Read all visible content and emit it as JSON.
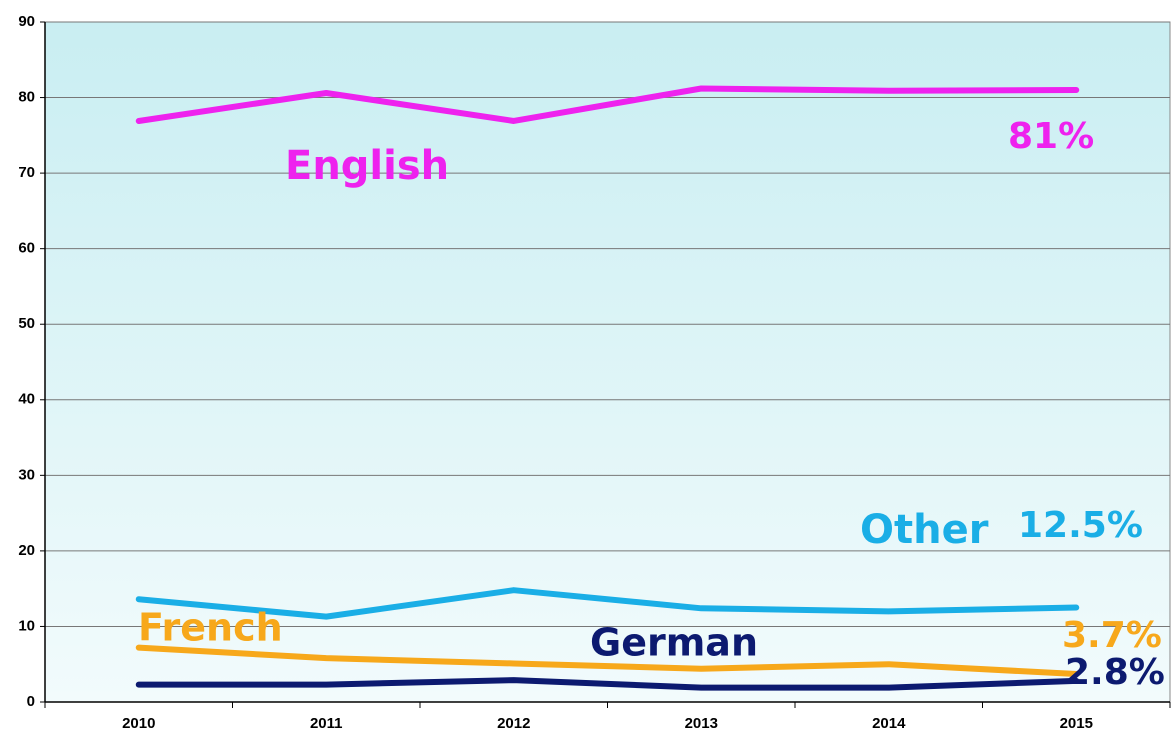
{
  "chart_data": {
    "type": "line",
    "categories": [
      "2010",
      "2011",
      "2012",
      "2013",
      "2014",
      "2015"
    ],
    "series": [
      {
        "name": "English",
        "color": "#ee22ee",
        "values": [
          76.9,
          80.6,
          76.9,
          81.2,
          80.9,
          81
        ],
        "value_labels": [
          null,
          null,
          null,
          null,
          null,
          "81%"
        ]
      },
      {
        "name": "Other",
        "color": "#1aaee6",
        "values": [
          13.6,
          11.3,
          14.8,
          12.4,
          12.0,
          12.5
        ],
        "value_labels": [
          null,
          null,
          null,
          null,
          null,
          "12.5%"
        ]
      },
      {
        "name": "French",
        "color": "#f7a81b",
        "values": [
          7.2,
          5.8,
          5.1,
          4.4,
          5.0,
          3.7
        ],
        "value_labels": [
          null,
          null,
          null,
          null,
          null,
          "3.7%"
        ]
      },
      {
        "name": "German",
        "color": "#0c1a70",
        "values": [
          2.3,
          2.3,
          2.9,
          1.9,
          1.9,
          2.8
        ],
        "value_labels": [
          null,
          null,
          null,
          null,
          null,
          "2.8%"
        ]
      }
    ],
    "ylim": [
      0,
      90
    ],
    "yticks": [
      0,
      10,
      20,
      30,
      40,
      50,
      60,
      70,
      80,
      90
    ],
    "grid": true
  }
}
